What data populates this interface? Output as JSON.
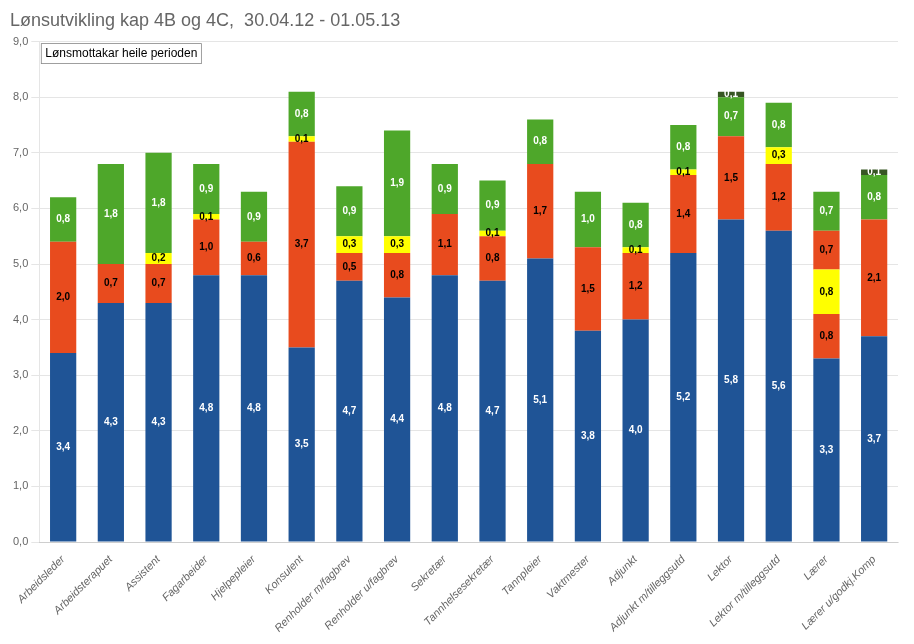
{
  "chart_data": {
    "type": "bar",
    "stacked": true,
    "title": "Lønsutvikling kap 4B og 4C,  30.04.12 - 01.05.13",
    "subtitle": "Lønsmottakar heile perioden",
    "categories": [
      "Arbeidsleder",
      "Arbeidsterapuet",
      "Assistent",
      "Fagarbeider",
      "Hjelpepleier",
      "Konsulent",
      "Renholder m/fagbrev",
      "Renholder u/fagbrev",
      "Sekretær",
      "Tannhelsesekretær",
      "Tannpleier",
      "Vaktmester",
      "Adjunkt",
      "Adjunkt m/tilleggsutd",
      "Lektor",
      "Lektor m/tilleggsutd",
      "Lærer",
      "Lærer u/godkj.Komp"
    ],
    "series": [
      {
        "color": "#1F5496",
        "values": [
          3.4,
          4.3,
          4.3,
          4.8,
          4.8,
          3.5,
          4.7,
          4.4,
          4.8,
          4.7,
          5.1,
          3.8,
          4.0,
          5.2,
          5.8,
          5.6,
          3.3,
          3.7
        ],
        "value_labels": [
          "3,4",
          "4,3",
          "4,3",
          "4,8",
          "4,8",
          "3,5",
          "4,7",
          "4,4",
          "4,8",
          "4,7",
          "5,1",
          "3,8",
          "4,0",
          "5,2",
          "5,8",
          "5,6",
          "3,3",
          "3,7"
        ]
      },
      {
        "color": "#E84B1E",
        "values": [
          2.0,
          0.7,
          0.7,
          1.0,
          0.6,
          3.7,
          0.5,
          0.8,
          1.1,
          0.8,
          1.7,
          1.5,
          1.2,
          1.4,
          0.0,
          1.2,
          0.8,
          2.1
        ],
        "value_labels": [
          "2,0",
          "0,7",
          "0,7",
          "1,0",
          "0,6",
          "3,7",
          "0,5",
          "0,8",
          "1,1",
          "0,8",
          "1,7",
          "1,5",
          "1,2",
          "1,4",
          null,
          "1,2",
          "0,8",
          "2,1"
        ]
      },
      {
        "color": "#FFFF00",
        "values": [
          0.0,
          0.0,
          0.2,
          0.1,
          0.0,
          0.1,
          0.3,
          0.3,
          0.0,
          0.1,
          0.0,
          0.0,
          0.1,
          0.1,
          0.0,
          0.3,
          0.8,
          0.0
        ],
        "value_labels": [
          null,
          null,
          "0,2",
          "0,1",
          null,
          "0,1",
          "0,3",
          "0,3",
          null,
          "0,1",
          null,
          null,
          "0,1",
          "0,1",
          null,
          "0,3",
          "0,8",
          null
        ]
      },
      {
        "color": "#E84B1E",
        "values": [
          0.0,
          0.0,
          0.0,
          0.0,
          0.0,
          0.0,
          0.0,
          0.0,
          0.0,
          0.0,
          0.0,
          0.0,
          0.0,
          0.0,
          1.5,
          0.0,
          0.7,
          0.0
        ],
        "value_labels": [
          null,
          null,
          null,
          null,
          null,
          null,
          null,
          null,
          null,
          null,
          null,
          null,
          null,
          null,
          "1,5",
          null,
          "0,7",
          null
        ]
      },
      {
        "color": "#4EA72A",
        "values": [
          0.8,
          1.8,
          1.8,
          0.9,
          0.9,
          0.8,
          0.9,
          1.9,
          0.9,
          0.9,
          0.8,
          1.0,
          0.8,
          0.8,
          0.7,
          0.8,
          0.7,
          0.8
        ],
        "value_labels": [
          "0,8",
          "1,8",
          "1,8",
          "0,9",
          "0,9",
          "0,8",
          "0,9",
          "1,9",
          "0,9",
          "0,9",
          "0,8",
          "1,0",
          "0,8",
          "0,8",
          "0,7",
          "0,8",
          "0,7",
          "0,8"
        ]
      },
      {
        "color": "#375623",
        "values": [
          0.0,
          0.0,
          0.0,
          0.0,
          0.0,
          0.0,
          0.0,
          0.0,
          0.0,
          0.0,
          0.0,
          0.0,
          0.0,
          0.0,
          0.1,
          0.0,
          0.0,
          0.1
        ],
        "value_labels": [
          null,
          null,
          null,
          null,
          null,
          null,
          null,
          null,
          null,
          null,
          null,
          null,
          null,
          null,
          "0,1",
          null,
          null,
          "0,1"
        ]
      }
    ],
    "ylim": [
      0,
      9.0
    ],
    "yticks": [
      {
        "value": 0.0,
        "label": "0,0"
      },
      {
        "value": 1.0,
        "label": "1,0"
      },
      {
        "value": 2.0,
        "label": "2,0"
      },
      {
        "value": 3.0,
        "label": "3,0"
      },
      {
        "value": 4.0,
        "label": "4,0"
      },
      {
        "value": 5.0,
        "label": "5,0"
      },
      {
        "value": 6.0,
        "label": "6,0"
      },
      {
        "value": 7.0,
        "label": "7,0"
      },
      {
        "value": 8.0,
        "label": "8,0"
      },
      {
        "value": 9.0,
        "label": "9,0"
      }
    ],
    "grid": true,
    "data_labels": true
  }
}
